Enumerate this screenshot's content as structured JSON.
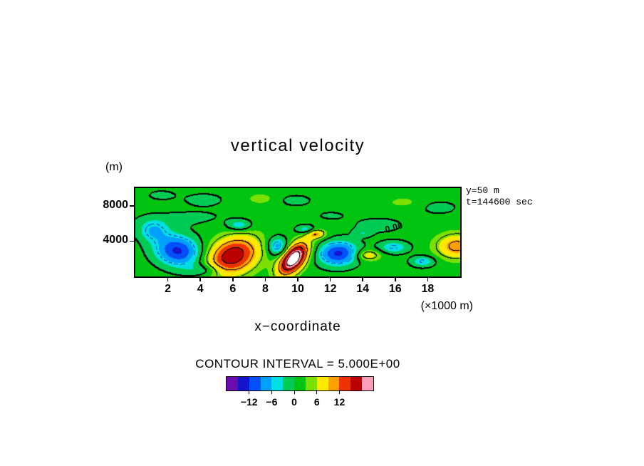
{
  "title": "vertical velocity",
  "axis": {
    "y_unit_label": "(m)",
    "x_unit_label": "(×1000 m)",
    "x_axis_label": "x−coordinate",
    "x_ticks": [
      {
        "value": 2,
        "label": "2"
      },
      {
        "value": 4,
        "label": "4"
      },
      {
        "value": 6,
        "label": "6"
      },
      {
        "value": 8,
        "label": "8"
      },
      {
        "value": 10,
        "label": "10"
      },
      {
        "value": 12,
        "label": "12"
      },
      {
        "value": 14,
        "label": "14"
      },
      {
        "value": 16,
        "label": "16"
      },
      {
        "value": 18,
        "label": "18"
      }
    ],
    "y_ticks": [
      {
        "value": 4000,
        "label": "4000"
      },
      {
        "value": 8000,
        "label": "8000"
      }
    ]
  },
  "annotations": {
    "line1": "y=50 m",
    "line2": "t=144600 sec"
  },
  "contour_interval_text": "CONTOUR INTERVAL = 5.000E+00",
  "chart_data": {
    "type": "contour",
    "title": "vertical velocity",
    "xlabel": "x−coordinate (×1000 m)",
    "ylabel": "(m)",
    "slice": {
      "y": "50 m",
      "t": "144600 sec"
    },
    "contour_interval": 5,
    "x_range_m": [
      0,
      20000
    ],
    "y_range_m": [
      0,
      10000
    ],
    "base_value": 1.3,
    "levels_solid": [
      0,
      5,
      10,
      15,
      20
    ],
    "levels_dashed": [
      -5,
      -10,
      -15
    ],
    "contour_colors": {
      "positive": "#000000",
      "negative": "#2244cc"
    },
    "zero_label": {
      "text": "0.00",
      "x_m": 15900,
      "y_m": 5600
    },
    "colormap": {
      "min": -18,
      "max": 21,
      "step": 3,
      "colors": [
        "#6a0dad",
        "#1414cd",
        "#0050ff",
        "#00a0ff",
        "#00e0e0",
        "#00cc55",
        "#00c410",
        "#7be000",
        "#ffe800",
        "#ffa000",
        "#ee3300",
        "#bb0000",
        "#ff9ebb"
      ],
      "over": "#ffffff",
      "under": "#3a0a6b"
    },
    "colorbar_labels": [
      {
        "value": -12,
        "label": "−12"
      },
      {
        "value": -6,
        "label": "−6"
      },
      {
        "value": 0,
        "label": "0"
      },
      {
        "value": 6,
        "label": "6"
      },
      {
        "value": 12,
        "label": "12"
      }
    ],
    "features": [
      {
        "x": 6000,
        "y": 2300,
        "sx": 1050,
        "sy": 1600,
        "rot": -20,
        "amp": 16.5
      },
      {
        "x": 9750,
        "y": 2000,
        "sx": 520,
        "sy": 1350,
        "rot": -18,
        "amp": 23
      },
      {
        "x": 11100,
        "y": 4800,
        "sx": 430,
        "sy": 380,
        "rot": 0,
        "amp": 8.5
      },
      {
        "x": 14300,
        "y": 2400,
        "sx": 560,
        "sy": 460,
        "rot": 0,
        "amp": 7
      },
      {
        "x": 19800,
        "y": 3400,
        "sx": 900,
        "sy": 1000,
        "rot": 0,
        "amp": 10
      },
      {
        "x": 7700,
        "y": 8800,
        "sx": 560,
        "sy": 430,
        "rot": 0,
        "amp": 3.2
      },
      {
        "x": 16500,
        "y": 8400,
        "sx": 800,
        "sy": 500,
        "rot": 0,
        "amp": 2.4
      },
      {
        "x": 2600,
        "y": 2900,
        "sx": 950,
        "sy": 1250,
        "rot": 15,
        "amp": -14
      },
      {
        "x": 1100,
        "y": 5200,
        "sx": 650,
        "sy": 850,
        "rot": 0,
        "amp": -7
      },
      {
        "x": 8750,
        "y": 3400,
        "sx": 430,
        "sy": 750,
        "rot": 0,
        "amp": -9
      },
      {
        "x": 12500,
        "y": 2600,
        "sx": 850,
        "sy": 950,
        "rot": -10,
        "amp": -14
      },
      {
        "x": 10500,
        "y": 5300,
        "sx": 420,
        "sy": 360,
        "rot": 0,
        "amp": -6.5
      },
      {
        "x": 6400,
        "y": 5800,
        "sx": 520,
        "sy": 430,
        "rot": 0,
        "amp": -6.5
      },
      {
        "x": 15900,
        "y": 3300,
        "sx": 650,
        "sy": 480,
        "rot": 0,
        "amp": -6.8
      },
      {
        "x": 17700,
        "y": 1700,
        "sx": 520,
        "sy": 430,
        "rot": 0,
        "amp": -6.8
      },
      {
        "x": 4300,
        "y": 700,
        "sx": 800,
        "sy": 500,
        "rot": 0,
        "amp": -5
      },
      {
        "x": 14000,
        "y": 4900,
        "sx": 380,
        "sy": 320,
        "rot": 0,
        "amp": -3.5
      },
      {
        "x": 4200,
        "y": 8700,
        "sx": 900,
        "sy": 550,
        "rot": 0,
        "amp": -2.6
      },
      {
        "x": 9900,
        "y": 8600,
        "sx": 750,
        "sy": 500,
        "rot": 0,
        "amp": -2.4
      },
      {
        "x": 15000,
        "y": 5800,
        "sx": 1300,
        "sy": 750,
        "rot": 0,
        "amp": -2.2
      },
      {
        "x": 18700,
        "y": 7800,
        "sx": 900,
        "sy": 600,
        "rot": 0,
        "amp": -2.3
      },
      {
        "x": 1600,
        "y": 9200,
        "sx": 700,
        "sy": 450,
        "rot": 0,
        "amp": -2.2
      },
      {
        "x": 3000,
        "y": 6600,
        "sx": 2200,
        "sy": 700,
        "rot": 5,
        "amp": -2.0
      },
      {
        "x": 12000,
        "y": 6900,
        "sx": 900,
        "sy": 500,
        "rot": 0,
        "amp": -1.6
      }
    ]
  }
}
